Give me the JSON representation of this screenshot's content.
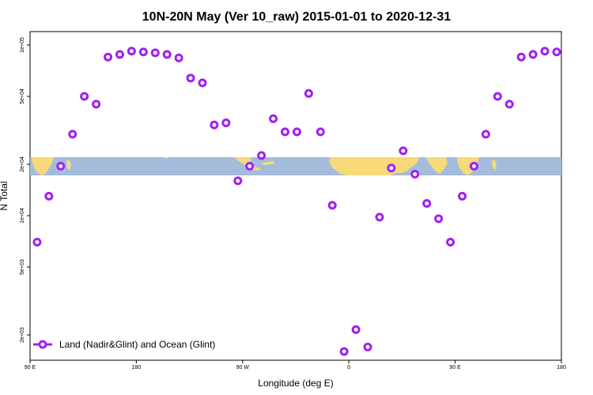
{
  "chart_data": {
    "type": "scatter",
    "title": "10N-20N May (Ver 10_raw)   2015-01-01 to 2020-12-31",
    "xlabel": "Longitude (deg E)",
    "ylabel": "N Total",
    "x_scale": "linear",
    "y_scale": "log",
    "xlim": [
      90,
      540
    ],
    "ylim": [
      1500,
      110000
    ],
    "x_ticks": [
      {
        "value": 90,
        "label": "90 E"
      },
      {
        "value": 180,
        "label": "180"
      },
      {
        "value": 270,
        "label": "90 W"
      },
      {
        "value": 360,
        "label": "0"
      },
      {
        "value": 450,
        "label": "90 E"
      },
      {
        "value": 540,
        "label": "180"
      }
    ],
    "y_ticks": [
      {
        "value": 2000,
        "label": "2e+03"
      },
      {
        "value": 5000,
        "label": "5e+03"
      },
      {
        "value": 10000,
        "label": "1e+04"
      },
      {
        "value": 20000,
        "label": "2e+04"
      },
      {
        "value": 50000,
        "label": "5e+04"
      },
      {
        "value": 100000,
        "label": "1e+05"
      }
    ],
    "legend": {
      "position": "bottom-left"
    },
    "color": "#a020f0",
    "series": [
      {
        "name": "Land (Nadir&Glint) and Ocean (Glint)",
        "x": [
          96,
          106,
          116,
          126,
          136,
          146,
          156,
          166,
          176,
          186,
          196,
          206,
          216,
          226,
          236,
          246,
          256,
          266,
          276,
          286,
          296,
          306,
          316,
          326,
          336,
          346,
          356,
          366,
          376,
          386,
          396,
          406,
          416,
          426,
          436,
          446,
          456,
          466,
          476,
          486,
          496,
          506,
          516,
          526,
          536
        ],
        "y": [
          7000,
          13000,
          19500,
          30000,
          50000,
          45000,
          85000,
          88000,
          92000,
          91000,
          90000,
          88000,
          84000,
          64000,
          60000,
          34000,
          35000,
          16000,
          19500,
          22500,
          37000,
          31000,
          31000,
          52000,
          31000,
          11500,
          1600,
          2150,
          1700,
          9800,
          19000,
          24000,
          17500,
          11800,
          9600,
          7000,
          13000,
          19500,
          30000,
          50000,
          45000,
          85000,
          88000,
          92000,
          91000
        ]
      }
    ]
  }
}
